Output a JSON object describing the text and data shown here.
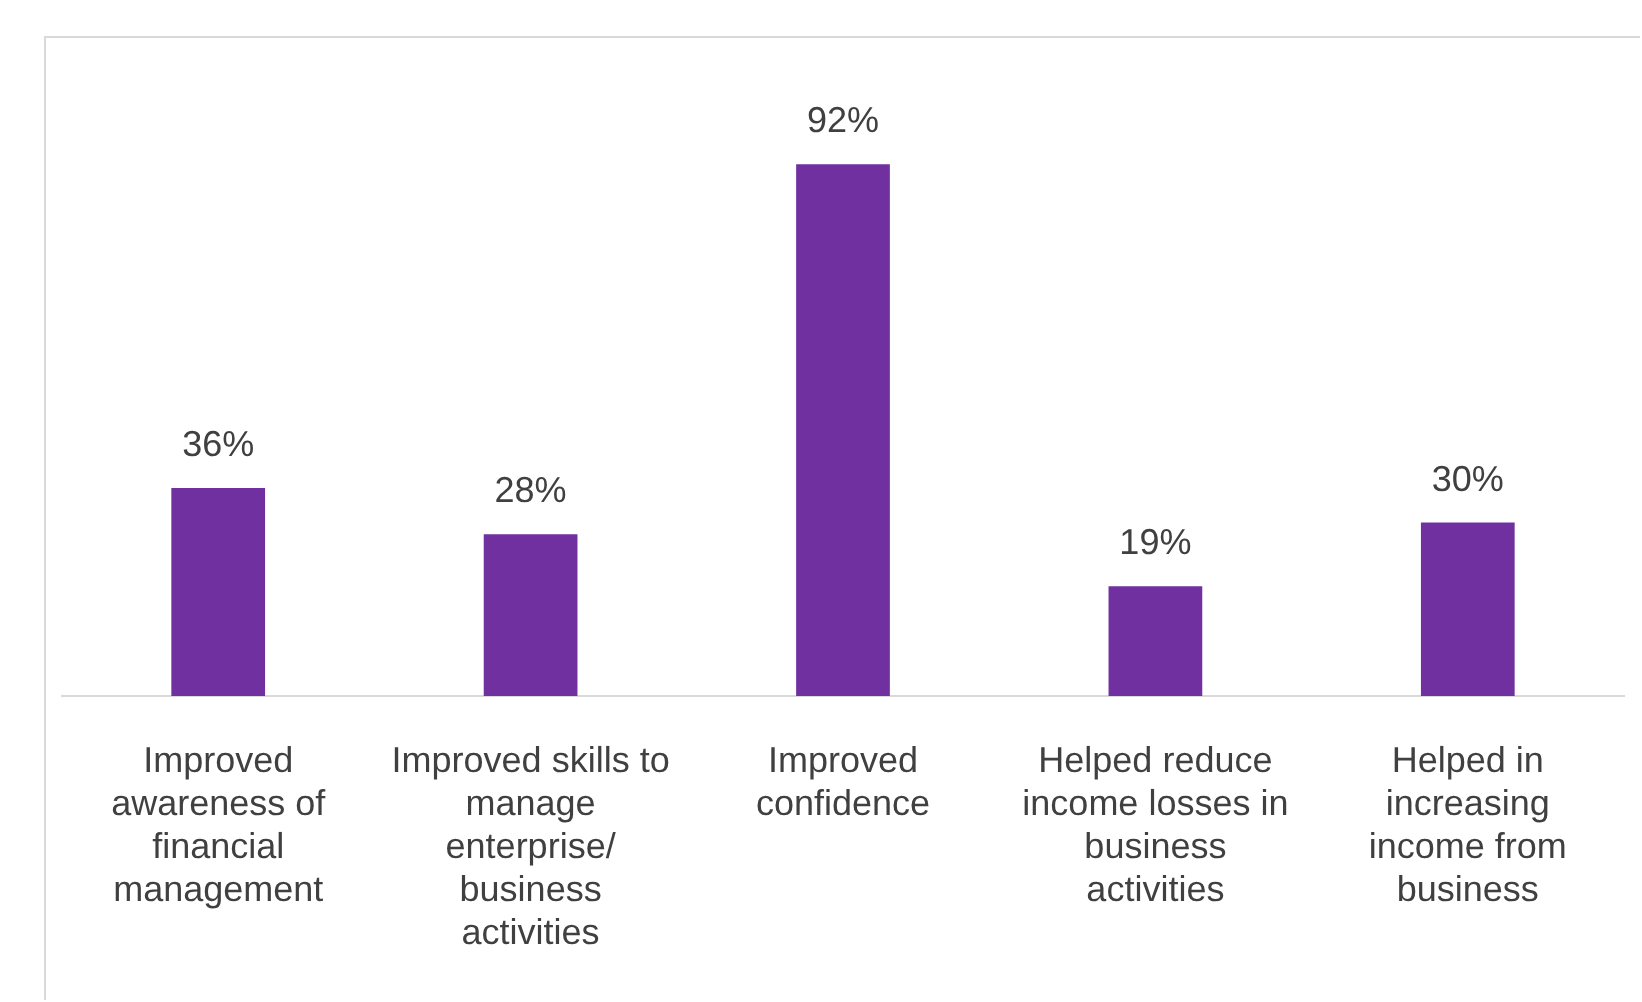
{
  "chart_data": {
    "type": "bar",
    "categories": [
      "Improved awareness of financial management",
      "Improved skills to manage enterprise/ business activities",
      "Improved confidence",
      "Helped reduce income losses in business activities",
      "Helped in increasing income from business"
    ],
    "values": [
      36,
      28,
      92,
      19,
      30
    ],
    "value_labels": [
      "36%",
      "28%",
      "92%",
      "19%",
      "30%"
    ],
    "color": "#7030a0",
    "grid": false,
    "legend": false,
    "tick_labels": "x"
  }
}
